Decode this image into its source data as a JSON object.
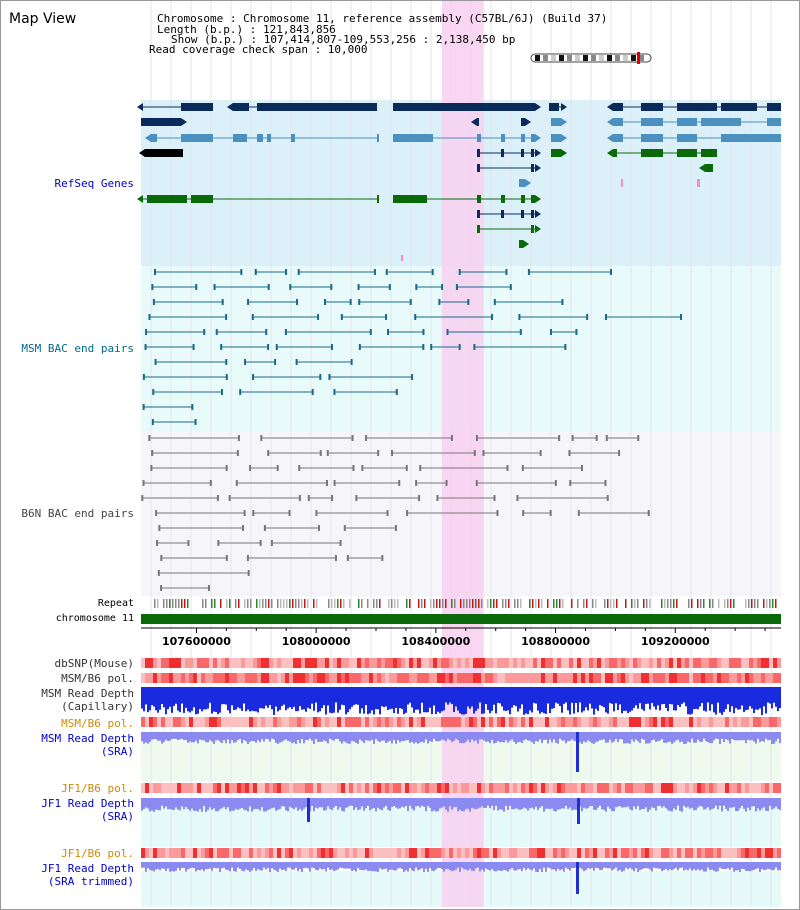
{
  "view": {
    "title": "Map View"
  },
  "info": {
    "chromosome_line": "Chromosome    : Chromosome 11, reference assembly (C57BL/6J) (Build 37)",
    "length_line": "Length (b.p.) : 121,843,856",
    "show_line": "Show (b.p.) : 107,414,807-109,553,256 : 2,138,450 bp",
    "coverage_line": "Read coverage check span : 10,000"
  },
  "tracks": {
    "refseq": "RefSeq Genes",
    "msm_bac": "MSM BAC end pairs",
    "b6n_bac": "B6N BAC end pairs",
    "repeat": "Repeat",
    "chromosome": "chromosome 11",
    "dbsnp": "dbSNP(Mouse)",
    "msm_pol_1": "MSM/B6 pol.",
    "msm_depth_cap_1": "MSM Read Depth",
    "msm_depth_cap_2": "(Capillary)",
    "msm_pol_2": "MSM/B6 pol.",
    "msm_depth_sra_1": "MSM Read Depth",
    "msm_depth_sra_2": "(SRA)",
    "jf1_pol_1": "JF1/B6 pol.",
    "jf1_depth_1": "JF1 Read Depth",
    "jf1_depth_2": "(SRA)",
    "jf1_pol_2": "JF1/B6 pol.",
    "jf1_trim_1": "JF1 Read Depth",
    "jf1_trim_2": "(SRA trimmed)"
  },
  "axis": {
    "start": 107414807,
    "end": 109553256,
    "ticks": [
      107600000,
      108000000,
      108400000,
      108800000,
      109200000
    ],
    "tick_labels": [
      "107600000",
      "108000000",
      "108400000",
      "108800000",
      "109200000"
    ]
  },
  "highlight": {
    "start": 108420000,
    "end": 108560000
  },
  "colors": {
    "refseq_bg": "#dcf0fa",
    "msm_bg": "#e8fafa",
    "b6n_bg": "#f6f6fa",
    "highlight": "#f8d0f0",
    "gene_dark": "#0a2a5a",
    "gene_mid": "#4a90c0",
    "gene_green": "#0a6a0a",
    "msm_line": "#1a6a8a",
    "b6n_line": "#777777",
    "depth_blue": "#1a2adf",
    "depth_light": "#8a8af0",
    "chrom_green": "#0a6a0a",
    "label_blue": "#0000cc",
    "label_teal": "#006a8a",
    "label_orange": "#d08a00"
  }
}
